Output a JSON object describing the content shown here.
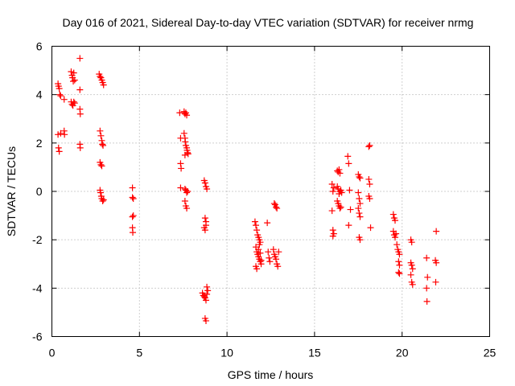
{
  "chart_data": {
    "type": "scatter",
    "title": "Day 016 of 2021, Sidereal Day-to-day VTEC variation (SDTVAR) for receiver nrmg",
    "xlabel": "GPS time / hours",
    "ylabel": "SDTVAR / TECUs",
    "xlim": [
      0,
      25
    ],
    "ylim": [
      -6,
      6
    ],
    "xticks": [
      0,
      5,
      10,
      15,
      20,
      25
    ],
    "yticks": [
      -6,
      -4,
      -2,
      0,
      2,
      4,
      6
    ],
    "xtick_labels": [
      "0",
      "5",
      "10",
      "15",
      "20",
      "25"
    ],
    "ytick_labels": [
      "-6",
      "-4",
      "-2",
      "0",
      "2",
      "4",
      "6"
    ],
    "grid": true,
    "marker": "+",
    "color": "#ff0000",
    "series": [
      {
        "name": "SDTVAR",
        "points": [
          [
            0.35,
            4.45
          ],
          [
            0.38,
            4.35
          ],
          [
            0.42,
            4.25
          ],
          [
            0.45,
            4.0
          ],
          [
            0.5,
            3.95
          ],
          [
            0.7,
            3.8
          ],
          [
            0.35,
            2.35
          ],
          [
            0.5,
            2.4
          ],
          [
            0.7,
            2.5
          ],
          [
            0.72,
            2.35
          ],
          [
            0.38,
            1.8
          ],
          [
            0.42,
            1.65
          ],
          [
            1.1,
            4.95
          ],
          [
            1.15,
            4.8
          ],
          [
            1.18,
            4.7
          ],
          [
            1.22,
            4.55
          ],
          [
            1.25,
            4.9
          ],
          [
            1.3,
            4.6
          ],
          [
            1.1,
            3.7
          ],
          [
            1.15,
            3.6
          ],
          [
            1.2,
            3.55
          ],
          [
            1.25,
            3.7
          ],
          [
            1.3,
            3.65
          ],
          [
            1.6,
            5.5
          ],
          [
            1.6,
            4.2
          ],
          [
            1.6,
            3.4
          ],
          [
            1.62,
            3.2
          ],
          [
            1.6,
            1.95
          ],
          [
            1.62,
            1.8
          ],
          [
            2.7,
            4.85
          ],
          [
            2.75,
            4.75
          ],
          [
            2.8,
            4.7
          ],
          [
            2.85,
            4.6
          ],
          [
            2.9,
            4.5
          ],
          [
            2.95,
            4.4
          ],
          [
            2.75,
            2.5
          ],
          [
            2.8,
            2.3
          ],
          [
            2.85,
            2.1
          ],
          [
            2.88,
            1.95
          ],
          [
            2.92,
            1.9
          ],
          [
            2.75,
            1.2
          ],
          [
            2.8,
            1.1
          ],
          [
            2.85,
            1.05
          ],
          [
            2.75,
            0.05
          ],
          [
            2.78,
            -0.05
          ],
          [
            2.82,
            -0.2
          ],
          [
            2.85,
            -0.3
          ],
          [
            2.9,
            -0.4
          ],
          [
            2.95,
            -0.35
          ],
          [
            4.6,
            0.15
          ],
          [
            4.6,
            -0.25
          ],
          [
            4.65,
            -0.3
          ],
          [
            4.6,
            -1.05
          ],
          [
            4.65,
            -1.0
          ],
          [
            4.6,
            -1.5
          ],
          [
            4.62,
            -1.7
          ],
          [
            7.3,
            3.25
          ],
          [
            7.55,
            3.3
          ],
          [
            7.6,
            3.2
          ],
          [
            7.65,
            3.25
          ],
          [
            7.7,
            3.15
          ],
          [
            7.35,
            2.2
          ],
          [
            7.55,
            2.4
          ],
          [
            7.6,
            2.2
          ],
          [
            7.62,
            2.05
          ],
          [
            7.65,
            1.9
          ],
          [
            7.7,
            1.8
          ],
          [
            7.72,
            1.7
          ],
          [
            7.75,
            1.6
          ],
          [
            7.78,
            1.55
          ],
          [
            7.6,
            1.5
          ],
          [
            7.35,
            1.15
          ],
          [
            7.38,
            0.95
          ],
          [
            7.35,
            0.15
          ],
          [
            7.6,
            0.1
          ],
          [
            7.65,
            0.05
          ],
          [
            7.7,
            -0.05
          ],
          [
            7.75,
            0.0
          ],
          [
            7.6,
            -0.4
          ],
          [
            7.65,
            -0.6
          ],
          [
            7.7,
            -0.7
          ],
          [
            8.7,
            0.45
          ],
          [
            8.75,
            0.35
          ],
          [
            8.8,
            0.2
          ],
          [
            8.85,
            0.1
          ],
          [
            8.75,
            -1.1
          ],
          [
            8.8,
            -1.25
          ],
          [
            8.7,
            -1.5
          ],
          [
            8.75,
            -1.6
          ],
          [
            8.8,
            -1.4
          ],
          [
            8.6,
            -4.2
          ],
          [
            8.65,
            -4.3
          ],
          [
            8.7,
            -4.35
          ],
          [
            8.75,
            -4.4
          ],
          [
            8.8,
            -4.5
          ],
          [
            8.85,
            -4.25
          ],
          [
            8.9,
            -4.1
          ],
          [
            8.85,
            -3.95
          ],
          [
            8.75,
            -5.25
          ],
          [
            8.8,
            -5.35
          ],
          [
            11.6,
            -1.25
          ],
          [
            11.65,
            -1.4
          ],
          [
            11.7,
            -1.6
          ],
          [
            11.75,
            -1.8
          ],
          [
            11.8,
            -1.9
          ],
          [
            11.85,
            -2.0
          ],
          [
            11.9,
            -2.1
          ],
          [
            11.65,
            -2.3
          ],
          [
            11.7,
            -2.5
          ],
          [
            11.75,
            -2.6
          ],
          [
            11.8,
            -2.7
          ],
          [
            11.85,
            -2.8
          ],
          [
            11.9,
            -2.9
          ],
          [
            11.95,
            -3.0
          ],
          [
            11.65,
            -3.1
          ],
          [
            11.7,
            -3.2
          ],
          [
            11.8,
            -2.4
          ],
          [
            11.85,
            -2.2
          ],
          [
            11.9,
            -2.55
          ],
          [
            11.95,
            -2.85
          ],
          [
            12.3,
            -1.3
          ],
          [
            12.35,
            -2.5
          ],
          [
            12.4,
            -2.75
          ],
          [
            12.45,
            -2.9
          ],
          [
            12.65,
            -2.4
          ],
          [
            12.7,
            -2.6
          ],
          [
            12.75,
            -2.7
          ],
          [
            12.8,
            -2.8
          ],
          [
            12.85,
            -3.0
          ],
          [
            12.9,
            -3.1
          ],
          [
            12.95,
            -2.5
          ],
          [
            12.7,
            -0.5
          ],
          [
            12.75,
            -0.55
          ],
          [
            12.8,
            -0.65
          ],
          [
            12.85,
            -0.7
          ],
          [
            16.0,
            0.3
          ],
          [
            16.05,
            0.0
          ],
          [
            16.1,
            0.15
          ],
          [
            16.0,
            -0.8
          ],
          [
            16.05,
            -1.6
          ],
          [
            16.1,
            -1.75
          ],
          [
            16.05,
            -1.85
          ],
          [
            16.3,
            0.85
          ],
          [
            16.35,
            0.8
          ],
          [
            16.4,
            0.9
          ],
          [
            16.45,
            0.75
          ],
          [
            16.3,
            0.2
          ],
          [
            16.35,
            0.1
          ],
          [
            16.4,
            -0.1
          ],
          [
            16.45,
            0.0
          ],
          [
            16.5,
            0.05
          ],
          [
            16.55,
            -0.05
          ],
          [
            16.3,
            -0.4
          ],
          [
            16.35,
            -0.5
          ],
          [
            16.4,
            -0.6
          ],
          [
            16.45,
            -0.7
          ],
          [
            16.5,
            -0.65
          ],
          [
            16.9,
            1.45
          ],
          [
            16.95,
            1.15
          ],
          [
            17.0,
            0.05
          ],
          [
            17.05,
            -0.75
          ],
          [
            16.95,
            -1.4
          ],
          [
            17.5,
            0.7
          ],
          [
            17.55,
            0.6
          ],
          [
            17.6,
            0.55
          ],
          [
            17.5,
            -0.05
          ],
          [
            17.55,
            -0.3
          ],
          [
            17.6,
            -0.5
          ],
          [
            17.5,
            -0.7
          ],
          [
            17.55,
            -0.9
          ],
          [
            17.6,
            -1.05
          ],
          [
            17.55,
            -1.9
          ],
          [
            17.6,
            -2.0
          ],
          [
            18.1,
            1.85
          ],
          [
            18.15,
            1.9
          ],
          [
            18.1,
            0.5
          ],
          [
            18.15,
            0.3
          ],
          [
            18.1,
            -0.2
          ],
          [
            18.15,
            -0.3
          ],
          [
            18.2,
            -1.5
          ],
          [
            19.5,
            -0.95
          ],
          [
            19.55,
            -1.1
          ],
          [
            19.6,
            -1.2
          ],
          [
            19.5,
            -1.65
          ],
          [
            19.55,
            -1.8
          ],
          [
            19.6,
            -1.9
          ],
          [
            19.65,
            -1.75
          ],
          [
            19.7,
            -2.2
          ],
          [
            19.75,
            -2.4
          ],
          [
            19.8,
            -2.5
          ],
          [
            19.85,
            -2.6
          ],
          [
            19.8,
            -2.9
          ],
          [
            19.85,
            -3.05
          ],
          [
            19.8,
            -3.35
          ],
          [
            19.85,
            -3.4
          ],
          [
            20.5,
            -2.0
          ],
          [
            20.55,
            -2.1
          ],
          [
            20.5,
            -2.95
          ],
          [
            20.55,
            -3.05
          ],
          [
            20.6,
            -3.2
          ],
          [
            20.5,
            -3.45
          ],
          [
            20.55,
            -3.75
          ],
          [
            20.6,
            -3.85
          ],
          [
            21.4,
            -2.75
          ],
          [
            21.45,
            -3.55
          ],
          [
            21.4,
            -4.0
          ],
          [
            21.42,
            -4.55
          ],
          [
            21.95,
            -1.65
          ],
          [
            21.9,
            -2.85
          ],
          [
            21.95,
            -2.95
          ],
          [
            21.92,
            -3.75
          ]
        ]
      }
    ]
  }
}
